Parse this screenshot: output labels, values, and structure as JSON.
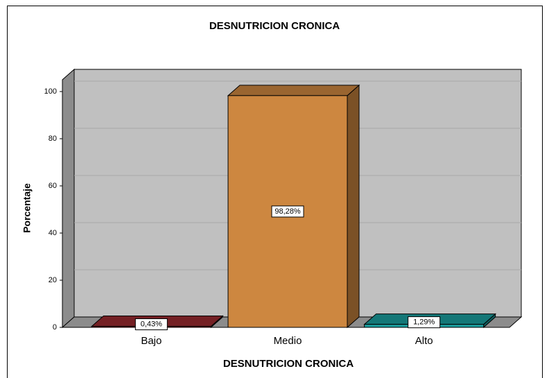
{
  "chart_data": {
    "type": "bar3d",
    "title": "DESNUTRICION CRONICA",
    "x_label": "DESNUTRICION CRONICA",
    "y_label": "Porcentaje",
    "categories": [
      "Bajo",
      "Medio",
      "Alto"
    ],
    "values": [
      0.43,
      98.28,
      1.29
    ],
    "value_labels": [
      "0,43%",
      "98,28%",
      "1,29%"
    ],
    "colors": [
      "#9b2b30",
      "#cd8740",
      "#1b9e9e"
    ],
    "ylim": [
      0,
      105
    ],
    "yticks": [
      0,
      20,
      40,
      60,
      80,
      100
    ],
    "grid": true
  }
}
